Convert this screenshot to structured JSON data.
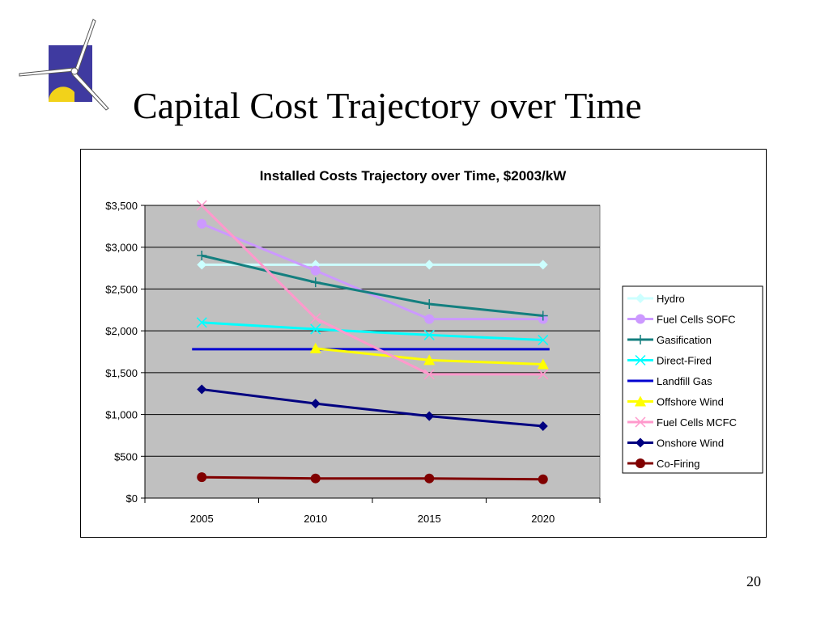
{
  "slide": {
    "title": "Capital Cost Trajectory over Time",
    "page_number": "20"
  },
  "colors": {
    "plot_background": "#c0c0c0",
    "logo_square": "#3f3aa0",
    "logo_sun": "#f2d21a"
  },
  "chart_data": {
    "type": "line",
    "title": "Installed Costs Trajectory over Time, $2003/kW",
    "xlabel": "",
    "ylabel": "",
    "categories": [
      "2005",
      "2010",
      "2015",
      "2020"
    ],
    "ylim": [
      0,
      3500
    ],
    "yticks": [
      0,
      500,
      1000,
      1500,
      2000,
      2500,
      3000,
      3500
    ],
    "ytick_labels": [
      "$0",
      "$500",
      "$1,000",
      "$1,500",
      "$2,000",
      "$2,500",
      "$3,000",
      "$3,500"
    ],
    "grid": "horizontal",
    "legend_position": "right",
    "series": [
      {
        "name": "Hydro",
        "color": "#ccffff",
        "marker": "diamond",
        "values": [
          2790,
          2790,
          2790,
          2790
        ]
      },
      {
        "name": "Fuel Cells SOFC",
        "color": "#cc99ff",
        "marker": "circle",
        "values": [
          3280,
          2720,
          2140,
          2140
        ]
      },
      {
        "name": "Gasification",
        "color": "#137f7f",
        "marker": "plus",
        "values": [
          2900,
          2580,
          2320,
          2180
        ]
      },
      {
        "name": "Direct-Fired",
        "color": "#00ffff",
        "marker": "x",
        "values": [
          2100,
          2020,
          1950,
          1890
        ]
      },
      {
        "name": "Landfill Gas",
        "color": "#0000d0",
        "marker": "none",
        "values": [
          1780,
          1780,
          1780,
          1780
        ]
      },
      {
        "name": "Offshore Wind",
        "color": "#ffff00",
        "marker": "triangle",
        "values": [
          null,
          1790,
          1650,
          1600
        ]
      },
      {
        "name": "Fuel Cells MCFC",
        "color": "#ff99cc",
        "marker": "x",
        "values": [
          3500,
          2150,
          1480,
          1480
        ]
      },
      {
        "name": "Onshore Wind",
        "color": "#000080",
        "marker": "diamond",
        "values": [
          1300,
          1130,
          980,
          860
        ]
      },
      {
        "name": "Co-Firing",
        "color": "#800000",
        "marker": "circle",
        "values": [
          250,
          235,
          235,
          225
        ]
      }
    ]
  }
}
